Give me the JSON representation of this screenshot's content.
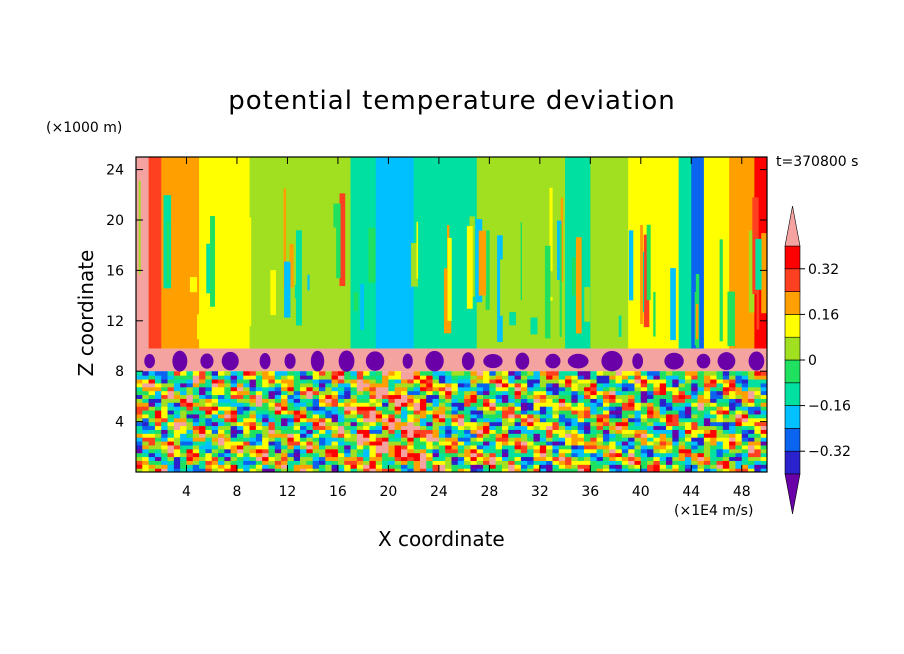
{
  "chart_data": {
    "type": "heatmap",
    "title": "potential temperature deviation",
    "xlabel": "X coordinate",
    "ylabel": "Z coordinate",
    "x_unit": "(×1E4 m/s)",
    "z_unit": "(×1000 m)",
    "time_label": "t=370800 s",
    "xlim": [
      0,
      50
    ],
    "ylim": [
      0,
      25
    ],
    "x_ticks": [
      4,
      8,
      12,
      16,
      20,
      24,
      28,
      32,
      36,
      40,
      44,
      48
    ],
    "x_tick_labels": [
      "4",
      "8",
      "12",
      "16",
      "20",
      "24",
      "28",
      "32",
      "36",
      "40",
      "44",
      "48"
    ],
    "y_ticks": [
      4,
      8,
      12,
      16,
      20,
      24
    ],
    "y_tick_labels": [
      "4",
      "8",
      "12",
      "16",
      "20",
      "24"
    ],
    "colorbar": {
      "levels": [
        -0.4,
        -0.32,
        -0.24,
        -0.16,
        -0.08,
        0,
        0.08,
        0.16,
        0.24,
        0.32,
        0.4
      ],
      "colors": [
        "#6a00a8",
        "#2a22cc",
        "#0a64f0",
        "#00c0ff",
        "#00e0a0",
        "#20e060",
        "#a0e020",
        "#ffff00",
        "#ffa000",
        "#ff4020",
        "#ff0000",
        "#f4a3a0"
      ],
      "tick_values": [
        0.32,
        0.16,
        0,
        -0.16,
        -0.32
      ],
      "tick_labels": [
        "0.32",
        "0.16",
        "0",
        "−0.16",
        "−0.32"
      ]
    },
    "upper_layer_columns": [
      {
        "x": [
          0,
          1
        ],
        "value": 0.4
      },
      {
        "x": [
          1,
          2
        ],
        "value": 0.3
      },
      {
        "x": [
          2,
          5
        ],
        "value": 0.2
      },
      {
        "x": [
          5,
          9
        ],
        "value": 0.1
      },
      {
        "x": [
          9,
          13
        ],
        "value": 0.02
      },
      {
        "x": [
          13,
          17
        ],
        "value": 0.0
      },
      {
        "x": [
          17,
          19
        ],
        "value": -0.1
      },
      {
        "x": [
          19,
          22
        ],
        "value": -0.22
      },
      {
        "x": [
          22,
          27
        ],
        "value": -0.12
      },
      {
        "x": [
          27,
          34
        ],
        "value": 0.0
      },
      {
        "x": [
          34,
          36
        ],
        "value": -0.12
      },
      {
        "x": [
          36,
          39
        ],
        "value": 0.05
      },
      {
        "x": [
          39,
          43
        ],
        "value": 0.1
      },
      {
        "x": [
          43,
          44
        ],
        "value": -0.1
      },
      {
        "x": [
          44,
          45
        ],
        "value": -0.3
      },
      {
        "x": [
          45,
          47
        ],
        "value": 0.1
      },
      {
        "x": [
          47,
          49
        ],
        "value": 0.2
      },
      {
        "x": [
          49,
          50
        ],
        "value": 0.32
      }
    ],
    "inversion_layer": {
      "z": [
        8,
        9.8
      ],
      "value": 0.45
    },
    "lower_layer_z": [
      0,
      8
    ]
  }
}
